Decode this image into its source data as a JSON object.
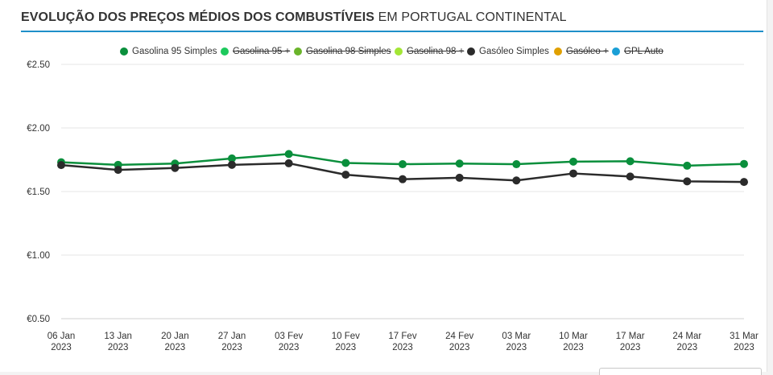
{
  "header": {
    "title_bold": "EVOLUÇÃO DOS PREÇOS MÉDIOS DOS COMBUSTÍVEIS",
    "title_rest": "EM PORTUGAL CONTINENTAL"
  },
  "legend": [
    {
      "label": "Gasolina 95 Simples",
      "color": "#0a8f3c",
      "active": true
    },
    {
      "label": "Gasolina 95 +",
      "color": "#1dc95c",
      "active": false
    },
    {
      "label": "Gasolina 98 Simples",
      "color": "#6ab42a",
      "active": false
    },
    {
      "label": "Gasolina 98 +",
      "color": "#a3e635",
      "active": false
    },
    {
      "label": "Gasóleo Simples",
      "color": "#2b2b2b",
      "active": true
    },
    {
      "label": "Gasóleo +",
      "color": "#e0a000",
      "active": false
    },
    {
      "label": "GPL Auto",
      "color": "#1a9fd6",
      "active": false
    }
  ],
  "chart_data": {
    "type": "line",
    "categories": [
      "06 Jan\n2023",
      "13 Jan\n2023",
      "20 Jan\n2023",
      "27 Jan\n2023",
      "03 Fev\n2023",
      "10 Fev\n2023",
      "17 Fev\n2023",
      "24 Fev\n2023",
      "03 Mar\n2023",
      "10 Mar\n2023",
      "17 Mar\n2023",
      "24 Mar\n2023",
      "31 Mar\n2023"
    ],
    "y_ticks": [
      {
        "value": 0.5,
        "label": "€0.50"
      },
      {
        "value": 1.0,
        "label": "€1.00"
      },
      {
        "value": 1.5,
        "label": "€1.50"
      },
      {
        "value": 2.0,
        "label": "€2.00"
      },
      {
        "value": 2.5,
        "label": "€2.50"
      }
    ],
    "ylim": [
      0.5,
      2.5
    ],
    "grid": true,
    "legend_position": "top",
    "series": [
      {
        "name": "Gasolina 95 Simples",
        "color": "#0a8f3c",
        "values": [
          1.73,
          1.71,
          1.72,
          1.76,
          1.795,
          1.725,
          1.715,
          1.72,
          1.715,
          1.735,
          1.738,
          1.703,
          1.717
        ]
      },
      {
        "name": "Gasóleo Simples",
        "color": "#2b2b2b",
        "values": [
          1.708,
          1.67,
          1.685,
          1.71,
          1.722,
          1.632,
          1.597,
          1.608,
          1.587,
          1.642,
          1.618,
          1.58,
          1.575
        ]
      }
    ]
  }
}
